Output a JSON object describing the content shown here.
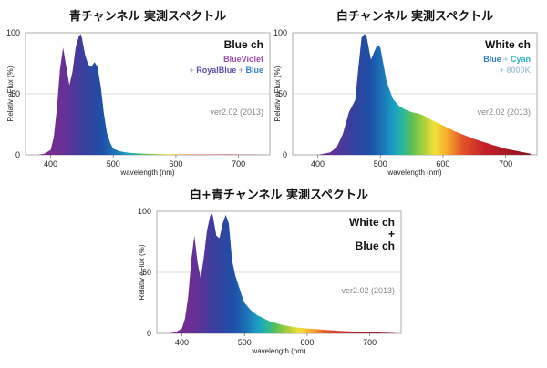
{
  "chart_data": [
    {
      "type": "area",
      "title": "青チャンネル 実測スペクトル",
      "xlabel": "wavelength (nm)",
      "ylabel": "Relativ eFlux (%)",
      "xlim": [
        360,
        750
      ],
      "ylim": [
        0,
        100
      ],
      "xticks": [
        "400",
        "500",
        "600",
        "700"
      ],
      "yticks": [
        "0",
        "50",
        "100"
      ],
      "grid": false,
      "legend_lines": [
        [
          {
            "text": "Blue ch",
            "color": "#111111"
          }
        ],
        [
          {
            "text": "BlueViolet",
            "color": "#9b4fb0"
          }
        ],
        [
          {
            "text": "+ ",
            "color": "#b0a0c8"
          },
          {
            "text": "RoyalBlue",
            "color": "#5a4fa8"
          },
          {
            "text": " + ",
            "color": "#b0a0c8"
          },
          {
            "text": "Blue",
            "color": "#2f7fc8"
          }
        ]
      ],
      "version": "ver2.02 (2013)",
      "series": [
        {
          "x": [
            380,
            390,
            400,
            405,
            410,
            415,
            420,
            425,
            430,
            435,
            440,
            445,
            448,
            450,
            455,
            460,
            465,
            470,
            475,
            480,
            485,
            490,
            495,
            500,
            510,
            520,
            530,
            550,
            600,
            650,
            700,
            740
          ],
          "y": [
            0,
            1,
            4,
            14,
            38,
            70,
            88,
            72,
            57,
            68,
            88,
            97,
            99,
            96,
            82,
            74,
            72,
            76,
            72,
            56,
            34,
            18,
            10,
            5,
            3,
            2,
            1.5,
            1,
            0.5,
            0.3,
            0.2,
            0.1
          ]
        }
      ]
    },
    {
      "type": "area",
      "title": "白チャンネル 実測スペクトル",
      "xlabel": "wavelength (nm)",
      "ylabel": "Relativ eFlux (%)",
      "xlim": [
        360,
        750
      ],
      "ylim": [
        0,
        100
      ],
      "xticks": [
        "400",
        "500",
        "600",
        "700"
      ],
      "yticks": [
        "0",
        "50",
        "100"
      ],
      "grid": false,
      "legend_lines": [
        [
          {
            "text": "White ch",
            "color": "#111111"
          }
        ],
        [
          {
            "text": "Blue",
            "color": "#2f7fc8"
          },
          {
            "text": " + ",
            "color": "#9fd0d8"
          },
          {
            "text": "Cyan",
            "color": "#29b3c2"
          }
        ],
        [
          {
            "text": "+ ",
            "color": "#9fd0d8"
          },
          {
            "text": "8000K",
            "color": "#a8c8d8"
          }
        ]
      ],
      "version": "ver2.02 (2013)",
      "series": [
        {
          "x": [
            400,
            420,
            430,
            440,
            450,
            455,
            460,
            465,
            470,
            475,
            478,
            485,
            490,
            495,
            500,
            505,
            510,
            520,
            530,
            540,
            550,
            560,
            570,
            580,
            600,
            620,
            650,
            680,
            700,
            720,
            740
          ],
          "y": [
            0,
            2,
            6,
            17,
            35,
            40,
            45,
            72,
            96,
            99,
            97,
            78,
            84,
            90,
            88,
            74,
            60,
            46,
            40,
            37,
            35,
            34,
            32,
            29,
            24,
            19,
            13,
            8,
            5,
            3,
            1
          ]
        }
      ]
    },
    {
      "type": "area",
      "title": "白+青チャンネル 実測スペクトル",
      "xlabel": "wavelength (nm)",
      "ylabel": "Relativ eFlux (%)",
      "xlim": [
        360,
        750
      ],
      "ylim": [
        0,
        100
      ],
      "xticks": [
        "400",
        "500",
        "600",
        "700"
      ],
      "yticks": [
        "0",
        "50",
        "100"
      ],
      "grid": false,
      "legend_lines": [
        [
          {
            "text": "White ch",
            "color": "#111111"
          }
        ],
        [
          {
            "text": "+",
            "color": "#111111"
          }
        ],
        [
          {
            "text": "Blue ch",
            "color": "#111111"
          }
        ]
      ],
      "version": "ver2.02 (2013)",
      "series": [
        {
          "x": [
            380,
            390,
            400,
            405,
            410,
            415,
            420,
            425,
            430,
            435,
            440,
            445,
            448,
            450,
            455,
            460,
            465,
            470,
            475,
            480,
            485,
            490,
            495,
            500,
            510,
            520,
            540,
            560,
            580,
            600,
            650,
            700,
            740
          ],
          "y": [
            0,
            1,
            4,
            12,
            30,
            60,
            80,
            58,
            45,
            62,
            84,
            96,
            99,
            95,
            80,
            78,
            90,
            97,
            90,
            60,
            48,
            40,
            32,
            25,
            19,
            15,
            10,
            7,
            5,
            4,
            2,
            1,
            0.3
          ]
        }
      ]
    }
  ]
}
